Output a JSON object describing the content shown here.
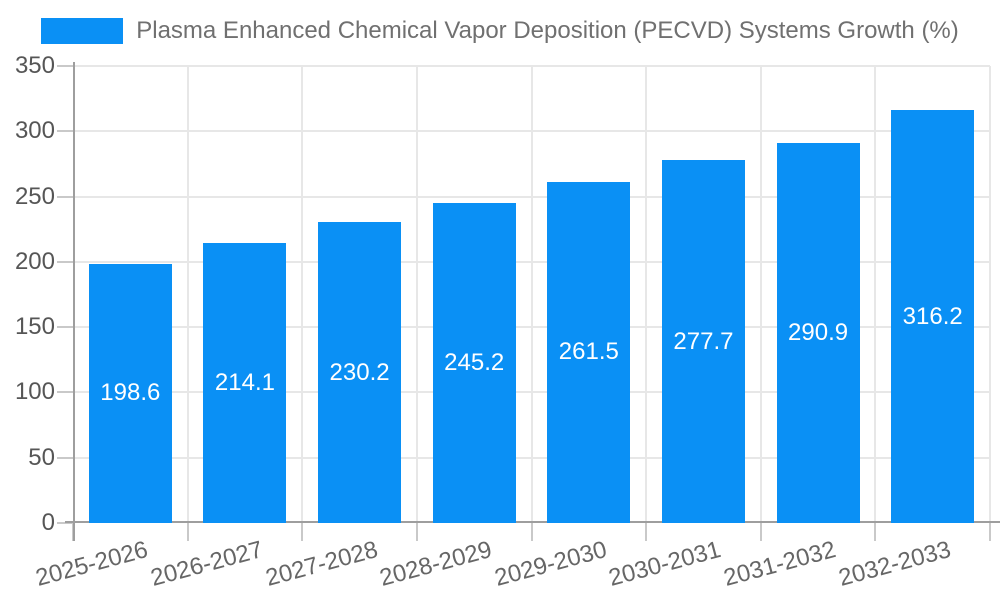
{
  "chart_data": {
    "type": "bar",
    "title": "Plasma Enhanced Chemical Vapor Deposition (PECVD) Systems Growth (%)",
    "categories": [
      "2025-2026",
      "2026-2027",
      "2027-2028",
      "2028-2029",
      "2029-2030",
      "2030-2031",
      "2031-2032",
      "2032-2033"
    ],
    "values": [
      198.6,
      214.1,
      230.2,
      245.2,
      261.5,
      277.7,
      290.9,
      316.2
    ],
    "value_labels": [
      "198.6",
      "214.1",
      "230.2",
      "245.2",
      "261.5",
      "277.7",
      "290.9",
      "316.2"
    ],
    "xlabel": "",
    "ylabel": "",
    "ylim": [
      0,
      350
    ],
    "yticks": [
      0,
      50,
      100,
      150,
      200,
      250,
      300,
      350
    ],
    "grid": true,
    "legend_position": "top",
    "x_label_rotation_deg": -15,
    "colors": {
      "bar": "#0A90F5",
      "gridline": "#e7e7e7",
      "axis_line": "#9e9e9e",
      "tick": "#c9c9c9",
      "y_label_text": "#565656",
      "x_label_text": "#666666",
      "legend_text": "#707070",
      "value_label_text": "#ffffff",
      "background": "#ffffff"
    }
  }
}
